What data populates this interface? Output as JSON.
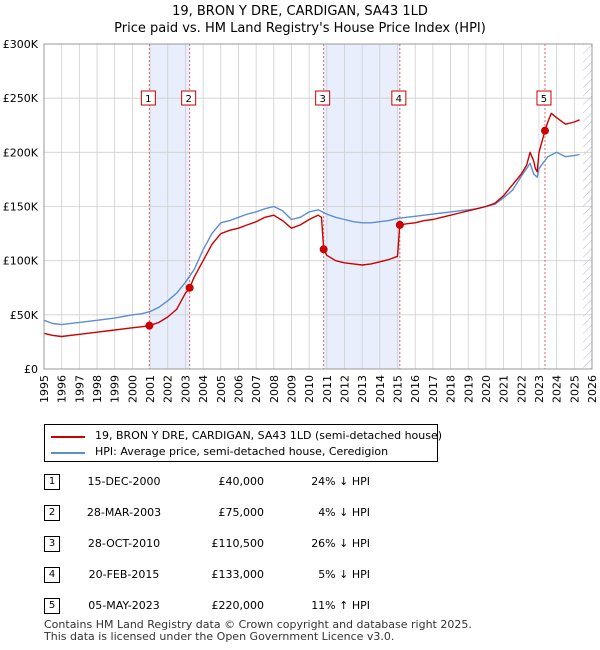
{
  "title_line1": "19, BRON Y DRE, CARDIGAN, SA43 1LD",
  "title_line2": "Price paid vs. HM Land Registry's House Price Index (HPI)",
  "colors": {
    "property_line": "#cc0000",
    "hpi_line": "#5b8fd0",
    "shade": "#e8eefc",
    "grid": "#cfcfcf",
    "vline": "#e06666",
    "hatch": "#b0b8c8"
  },
  "legend": {
    "property_label": "19, BRON Y DRE, CARDIGAN, SA43 1LD (semi-detached house)",
    "hpi_label": "HPI: Average price, semi-detached house, Ceredigion"
  },
  "chart_data": {
    "type": "line",
    "title": "19, BRON Y DRE, CARDIGAN, SA43 1LD — Price paid vs. HM Land Registry's House Price Index (HPI)",
    "xlabel": "",
    "ylabel": "",
    "xlim": [
      1995,
      2026
    ],
    "ylim": [
      0,
      300000
    ],
    "grid": true,
    "x_ticks": [
      1995,
      1996,
      1997,
      1998,
      1999,
      2000,
      2001,
      2002,
      2003,
      2004,
      2005,
      2006,
      2007,
      2008,
      2009,
      2010,
      2011,
      2012,
      2013,
      2014,
      2015,
      2016,
      2017,
      2018,
      2019,
      2020,
      2021,
      2022,
      2023,
      2024,
      2025,
      2026
    ],
    "y_ticks": [
      0,
      50000,
      100000,
      150000,
      200000,
      250000,
      300000
    ],
    "y_tick_labels": [
      "£0",
      "£50K",
      "£100K",
      "£150K",
      "£200K",
      "£250K",
      "£300K"
    ],
    "future_hatch_from": 2025.5,
    "shaded_ranges": [
      [
        2000.96,
        2003.24
      ],
      [
        2010.82,
        2015.13
      ]
    ],
    "series": [
      {
        "name": "19, BRON Y DRE, CARDIGAN, SA43 1LD (semi-detached house)",
        "x": [
          1995.0,
          1995.5,
          1996.0,
          1997.0,
          1998.0,
          1999.0,
          2000.0,
          2000.5,
          2000.96,
          2001.5,
          2002.0,
          2002.5,
          2003.0,
          2003.24,
          2003.5,
          2004.0,
          2004.5,
          2005.0,
          2005.5,
          2006.0,
          2006.5,
          2007.0,
          2007.5,
          2008.0,
          2008.5,
          2009.0,
          2009.5,
          2010.0,
          2010.5,
          2010.7,
          2010.82,
          2011.0,
          2011.5,
          2012.0,
          2012.5,
          2013.0,
          2013.5,
          2014.0,
          2014.5,
          2015.0,
          2015.13,
          2015.5,
          2016.0,
          2016.5,
          2017.0,
          2017.5,
          2018.0,
          2018.5,
          2019.0,
          2019.5,
          2020.0,
          2020.5,
          2021.0,
          2021.5,
          2022.0,
          2022.3,
          2022.5,
          2022.7,
          2022.8,
          2022.9,
          2023.0,
          2023.34,
          2023.5,
          2023.7,
          2024.0,
          2024.5,
          2025.0,
          2025.3
        ],
        "values": [
          33000,
          31000,
          30000,
          32000,
          34000,
          36000,
          38000,
          39000,
          40000,
          43000,
          48000,
          55000,
          70000,
          75000,
          85000,
          100000,
          115000,
          125000,
          128000,
          130000,
          133000,
          136000,
          140000,
          142000,
          137000,
          130000,
          133000,
          138000,
          142000,
          140000,
          110500,
          105000,
          100000,
          98000,
          97000,
          96000,
          97000,
          99000,
          101000,
          104000,
          133000,
          134000,
          135000,
          137000,
          138000,
          140000,
          142000,
          144000,
          146000,
          148000,
          150000,
          153000,
          160000,
          170000,
          180000,
          188000,
          200000,
          192000,
          185000,
          182000,
          200000,
          220000,
          228000,
          236000,
          232000,
          226000,
          228000,
          230000
        ]
      },
      {
        "name": "HPI: Average price, semi-detached house, Ceredigion",
        "x": [
          1995.0,
          1995.5,
          1996.0,
          1997.0,
          1998.0,
          1999.0,
          2000.0,
          2000.5,
          2001.0,
          2001.5,
          2002.0,
          2002.5,
          2003.0,
          2003.5,
          2004.0,
          2004.5,
          2005.0,
          2005.5,
          2006.0,
          2006.5,
          2007.0,
          2007.5,
          2008.0,
          2008.5,
          2009.0,
          2009.5,
          2010.0,
          2010.5,
          2011.0,
          2011.5,
          2012.0,
          2012.5,
          2013.0,
          2013.5,
          2014.0,
          2014.5,
          2015.0,
          2015.5,
          2016.0,
          2016.5,
          2017.0,
          2017.5,
          2018.0,
          2018.5,
          2019.0,
          2019.5,
          2020.0,
          2020.5,
          2021.0,
          2021.5,
          2022.0,
          2022.3,
          2022.5,
          2022.7,
          2022.9,
          2023.0,
          2023.5,
          2024.0,
          2024.5,
          2025.0,
          2025.3
        ],
        "values": [
          45000,
          42000,
          41000,
          43000,
          45000,
          47000,
          50000,
          51000,
          53000,
          57000,
          63000,
          70000,
          80000,
          92000,
          110000,
          125000,
          135000,
          137000,
          140000,
          143000,
          145000,
          148000,
          150000,
          146000,
          138000,
          140000,
          145000,
          147000,
          143000,
          140000,
          138000,
          136000,
          135000,
          135000,
          136000,
          137000,
          139000,
          140000,
          141000,
          142000,
          143000,
          144000,
          145000,
          146000,
          147000,
          148000,
          150000,
          152000,
          158000,
          165000,
          178000,
          185000,
          190000,
          180000,
          177000,
          185000,
          196000,
          200000,
          196000,
          197000,
          198000
        ]
      }
    ],
    "sales": [
      {
        "label": "1",
        "x": 2000.96,
        "value": 40000
      },
      {
        "label": "2",
        "x": 2003.24,
        "value": 75000
      },
      {
        "label": "3",
        "x": 2010.82,
        "value": 110500
      },
      {
        "label": "4",
        "x": 2015.13,
        "value": 133000
      },
      {
        "label": "5",
        "x": 2023.34,
        "value": 220000
      }
    ]
  },
  "transactions": [
    {
      "num": "1",
      "date": "15-DEC-2000",
      "price": "£40,000",
      "hpi": "24% ↓ HPI"
    },
    {
      "num": "2",
      "date": "28-MAR-2003",
      "price": "£75,000",
      "hpi": "4% ↓ HPI"
    },
    {
      "num": "3",
      "date": "28-OCT-2010",
      "price": "£110,500",
      "hpi": "26% ↓ HPI"
    },
    {
      "num": "4",
      "date": "20-FEB-2015",
      "price": "£133,000",
      "hpi": "5% ↓ HPI"
    },
    {
      "num": "5",
      "date": "05-MAY-2023",
      "price": "£220,000",
      "hpi": "11% ↑ HPI"
    }
  ],
  "footer_line1": "Contains HM Land Registry data © Crown copyright and database right 2025.",
  "footer_line2": "This data is licensed under the Open Government Licence v3.0."
}
